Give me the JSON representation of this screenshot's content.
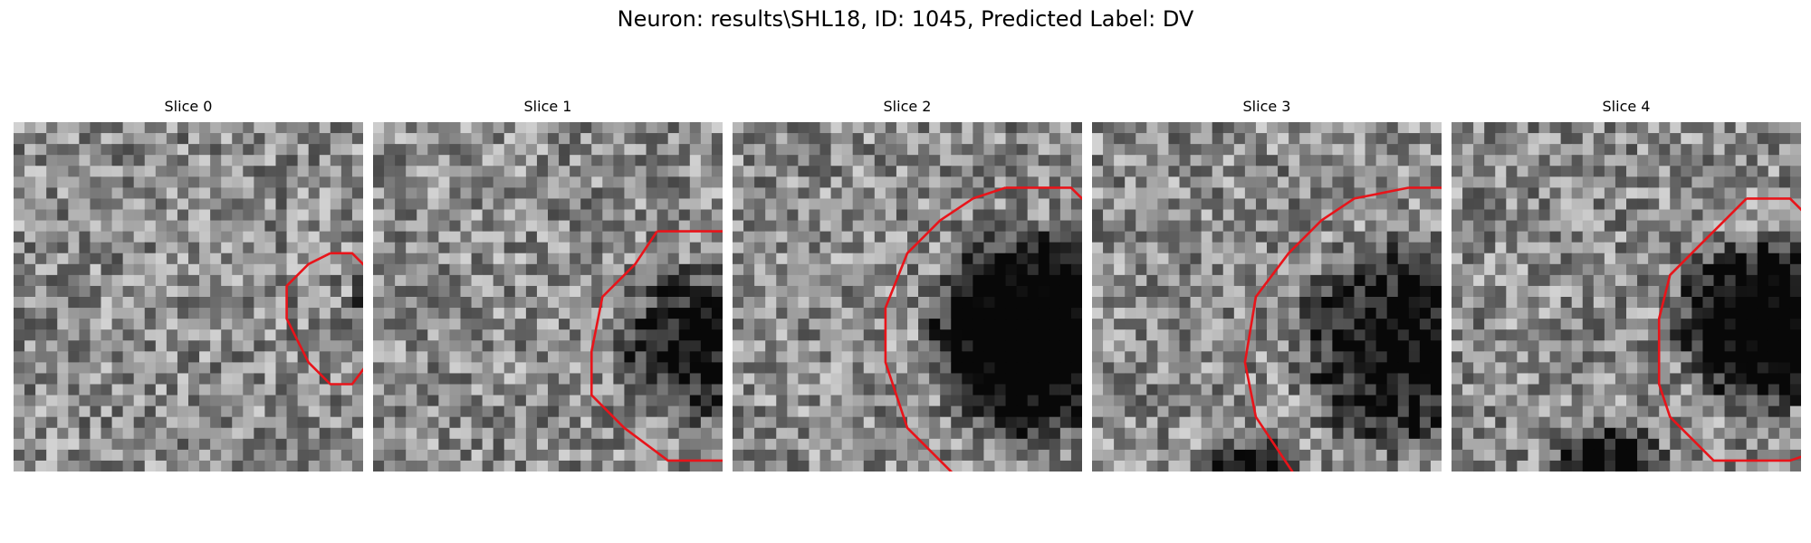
{
  "figure": {
    "title": "Neuron: results\\SHL18, ID: 1045, Predicted Label: DV"
  },
  "panels": [
    {
      "title": "Slice 0",
      "contour": [
        [
          17,
          0
        ],
        [
          19,
          0
        ],
        [
          22,
          3
        ],
        [
          22,
          8
        ],
        [
          19,
          12
        ],
        [
          17,
          12
        ],
        [
          15,
          10
        ],
        [
          14,
          8
        ],
        [
          13,
          6
        ],
        [
          13,
          3
        ],
        [
          15,
          1
        ]
      ],
      "darkBlobs": [
        {
          "cx": 22,
          "cy": 4,
          "r": 4,
          "strength": 0.55
        },
        {
          "cx": 29,
          "cy": 5,
          "r": 3,
          "strength": 0.35
        }
      ]
    },
    {
      "title": "Slice 1",
      "contour": [
        [
          14,
          -2
        ],
        [
          21,
          -2
        ],
        [
          24,
          1
        ],
        [
          27,
          4
        ],
        [
          28,
          7
        ],
        [
          28,
          12
        ],
        [
          25,
          16
        ],
        [
          22,
          19
        ],
        [
          15,
          19
        ],
        [
          11,
          16
        ],
        [
          8,
          13
        ],
        [
          8,
          9
        ],
        [
          9,
          4
        ],
        [
          12,
          1
        ]
      ],
      "darkBlobs": [
        {
          "cx": 17,
          "cy": 8,
          "r": 8,
          "strength": 0.55
        }
      ]
    },
    {
      "title": "Slice 2",
      "contour": [
        [
          13,
          -6
        ],
        [
          19,
          -6
        ],
        [
          22,
          -3
        ],
        [
          25,
          0
        ],
        [
          26,
          5
        ],
        [
          27,
          10
        ],
        [
          26,
          14
        ],
        [
          24,
          18
        ],
        [
          20,
          21
        ],
        [
          17,
          23
        ],
        [
          12,
          23
        ],
        [
          9,
          21
        ],
        [
          7,
          19
        ],
        [
          4,
          16
        ],
        [
          2,
          10
        ],
        [
          2,
          5
        ],
        [
          4,
          0
        ],
        [
          7,
          -3
        ],
        [
          10,
          -5
        ]
      ],
      "darkBlobs": [
        {
          "cx": 15,
          "cy": 7,
          "r": 11,
          "strength": 0.85
        }
      ]
    },
    {
      "title": "Slice 3",
      "contour": [
        [
          17,
          -6
        ],
        [
          20,
          -6
        ],
        [
          23,
          -3
        ],
        [
          26,
          0
        ],
        [
          28,
          4
        ],
        [
          29,
          10
        ],
        [
          28,
          15
        ],
        [
          26,
          19
        ],
        [
          23,
          21
        ],
        [
          20,
          23
        ],
        [
          10,
          23
        ],
        [
          7,
          21
        ],
        [
          5,
          18
        ],
        [
          3,
          15
        ],
        [
          2,
          10
        ],
        [
          3,
          4
        ],
        [
          6,
          0
        ],
        [
          9,
          -3
        ],
        [
          12,
          -5
        ]
      ],
      "darkBlobs": [
        {
          "cx": 16,
          "cy": 8,
          "r": 11,
          "strength": 0.6
        },
        {
          "cx": 2,
          "cy": 22,
          "r": 6,
          "strength": 0.7
        }
      ]
    },
    {
      "title": "Slice 4",
      "contour": [
        [
          15,
          -5
        ],
        [
          19,
          -5
        ],
        [
          21,
          -3
        ],
        [
          23,
          -4
        ],
        [
          25,
          -2
        ],
        [
          23,
          0
        ],
        [
          25,
          3
        ],
        [
          26,
          7
        ],
        [
          26,
          12
        ],
        [
          24,
          15
        ],
        [
          22,
          18
        ],
        [
          19,
          19
        ],
        [
          12,
          19
        ],
        [
          10,
          17
        ],
        [
          8,
          15
        ],
        [
          7,
          12
        ],
        [
          7,
          6
        ],
        [
          8,
          2
        ],
        [
          11,
          -1
        ],
        [
          13,
          -3
        ]
      ],
      "darkBlobs": [
        {
          "cx": 16,
          "cy": 6,
          "r": 9,
          "strength": 0.75
        },
        {
          "cx": 2,
          "cy": 20,
          "r": 6,
          "strength": 0.6
        }
      ]
    }
  ]
}
